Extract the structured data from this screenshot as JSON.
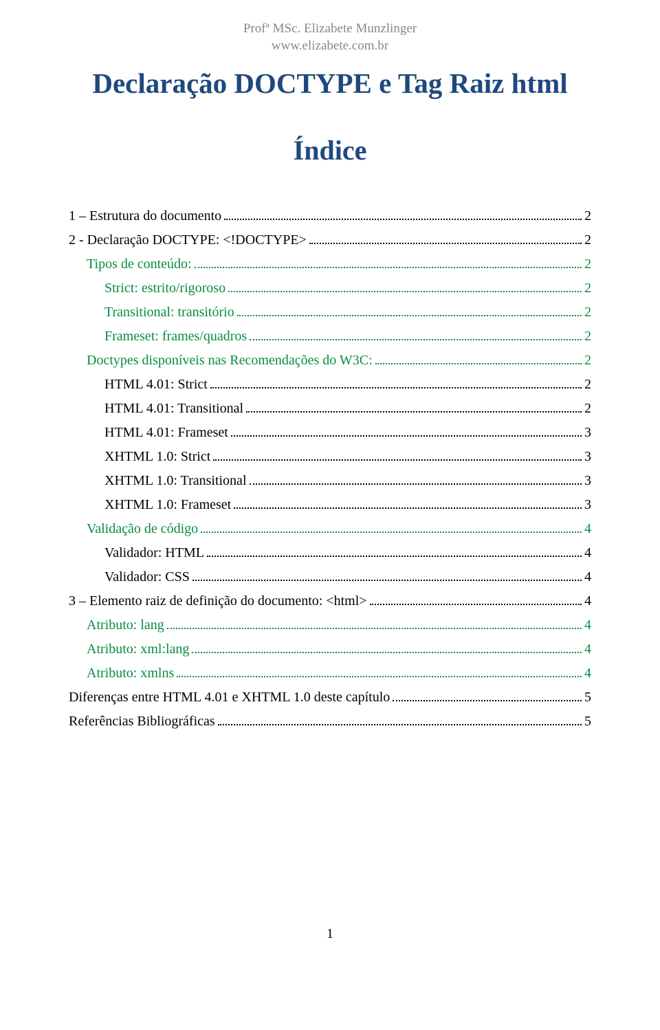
{
  "header": {
    "line1": "Profª MSc. Elizabete Munzlinger",
    "line2": "www.elizabete.com.br"
  },
  "title": "Declaração DOCTYPE e Tag Raiz html",
  "subtitle": "Índice",
  "toc": [
    {
      "label": "1 – Estrutura do documento",
      "page": "2",
      "indent": 0,
      "color": "black"
    },
    {
      "label": "2 - Declaração DOCTYPE: <!DOCTYPE>",
      "page": "2",
      "indent": 0,
      "color": "black"
    },
    {
      "label": "Tipos de conteúdo:",
      "page": "2",
      "indent": 1,
      "color": "green"
    },
    {
      "label": "Strict: estrito/rigoroso",
      "page": "2",
      "indent": 2,
      "color": "green"
    },
    {
      "label": "Transitional: transitório",
      "page": "2",
      "indent": 2,
      "color": "green"
    },
    {
      "label": "Frameset: frames/quadros",
      "page": "2",
      "indent": 2,
      "color": "green"
    },
    {
      "label": "Doctypes disponíveis nas Recomendações do W3C:",
      "page": "2",
      "indent": 1,
      "color": "green"
    },
    {
      "label": "HTML 4.01: Strict",
      "page": "2",
      "indent": 2,
      "color": "black"
    },
    {
      "label": "HTML 4.01: Transitional",
      "page": "2",
      "indent": 2,
      "color": "black"
    },
    {
      "label": "HTML 4.01: Frameset",
      "page": "3",
      "indent": 2,
      "color": "black"
    },
    {
      "label": "XHTML 1.0: Strict",
      "page": "3",
      "indent": 2,
      "color": "black"
    },
    {
      "label": "XHTML 1.0: Transitional",
      "page": "3",
      "indent": 2,
      "color": "black"
    },
    {
      "label": "XHTML 1.0: Frameset",
      "page": "3",
      "indent": 2,
      "color": "black"
    },
    {
      "label": "Validação de código",
      "page": "4",
      "indent": 1,
      "color": "green"
    },
    {
      "label": "Validador: HTML",
      "page": "4",
      "indent": 2,
      "color": "black"
    },
    {
      "label": "Validador: CSS",
      "page": "4",
      "indent": 2,
      "color": "black"
    },
    {
      "label": "3 – Elemento raiz de definição do documento: <html>",
      "page": "4",
      "indent": 0,
      "color": "black"
    },
    {
      "label": "Atributo: lang",
      "page": "4",
      "indent": 1,
      "color": "green"
    },
    {
      "label": "Atributo: xml:lang",
      "page": "4",
      "indent": 1,
      "color": "green"
    },
    {
      "label": "Atributo: xmlns",
      "page": "4",
      "indent": 1,
      "color": "green"
    },
    {
      "label": "Diferenças entre HTML 4.01 e XHTML 1.0 deste capítulo",
      "page": "5",
      "indent": 0,
      "color": "black"
    },
    {
      "label": "Referências Bibliográficas",
      "page": "5",
      "indent": 0,
      "color": "black"
    }
  ],
  "pageNumber": "1",
  "colors": {
    "titleColor": "#1f497d",
    "linkColor": "#078d3f",
    "headerColor": "#888888",
    "bodyColor": "#000000",
    "background": "#ffffff"
  },
  "fonts": {
    "titleSize": 41,
    "subtitleSize": 40,
    "bodySize": 20,
    "headerSize": 19
  }
}
